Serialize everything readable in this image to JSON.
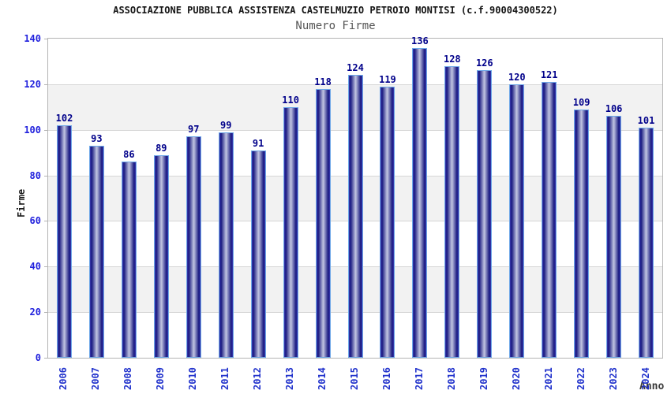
{
  "chart_data": {
    "type": "bar",
    "title": "ASSOCIAZIONE PUBBLICA ASSISTENZA CASTELMUZIO PETROIO MONTISI (c.f.90004300522)",
    "subtitle": "Numero Firme",
    "xlabel": "Anno",
    "ylabel": "Firme",
    "categories": [
      "2006",
      "2007",
      "2008",
      "2009",
      "2010",
      "2011",
      "2012",
      "2013",
      "2014",
      "2015",
      "2016",
      "2017",
      "2018",
      "2019",
      "2020",
      "2021",
      "2022",
      "2023",
      "2024"
    ],
    "values": [
      102,
      93,
      86,
      89,
      97,
      99,
      91,
      110,
      118,
      124,
      119,
      136,
      128,
      126,
      120,
      121,
      109,
      106,
      101
    ],
    "ylim": [
      0,
      140
    ],
    "ytick_step": 20,
    "legend": "none",
    "grid": "horizontal gridlines with alternating gray bands (20-40, 60-80, 100-120)",
    "colors": {
      "bar_edge_stroke": "#6fa8e8",
      "bar_dark": "#181880",
      "bar_light_center": "#c2c6e2",
      "value_label": "#00008a",
      "axis_tick_label": "#2222dd",
      "band_fill": "#f2f2f2",
      "gridline": "#d6d6d6",
      "title_color": "#141414",
      "subtitle_color": "#555555"
    }
  }
}
